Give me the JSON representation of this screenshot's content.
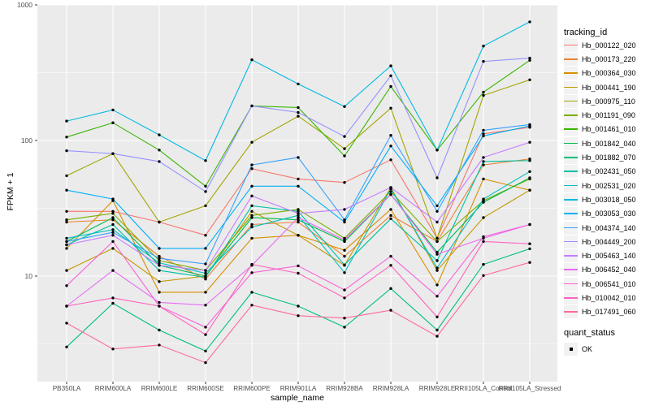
{
  "figure": {
    "background": "#FFFFFF",
    "panel_bg": "#EBEBEB",
    "grid_color": "#FFFFFF",
    "tick_color": "#333333",
    "tick_label_color": "#4D4D4D",
    "axis_title_color": "#000000",
    "point_color": "#000000"
  },
  "chart_data": {
    "type": "line",
    "title": "",
    "xlabel": "sample_name",
    "ylabel": "FPKM + 1",
    "y_scale": "log10",
    "y_tick_labels": [
      "10",
      "100",
      "1000"
    ],
    "y_tick_values": [
      10,
      100,
      1000
    ],
    "y_minor_values": [
      3.162,
      31.62,
      316.2
    ],
    "legend_position": "right",
    "grid": true,
    "categories": [
      "PB350LA",
      "RRIM600LA",
      "RRIM600LE",
      "RRIM600SE",
      "RRIM600PE",
      "RRIM901LA",
      "RRIM928BA",
      "RRIM928LA",
      "RRIM928LE",
      "RRII105LA_Control",
      "RRII105LA_Stressed"
    ],
    "legend_title": "tracking_id",
    "shape_legend_title": "quant_status",
    "shape_legend_items": [
      "OK"
    ],
    "series": [
      {
        "name": "Hb_000122_020",
        "color": "#F8766D",
        "values": [
          30,
          30,
          25,
          20,
          62,
          52,
          49,
          72,
          19,
          112,
          125
        ]
      },
      {
        "name": "Hb_000173_220",
        "color": "#EA8331",
        "values": [
          25,
          26,
          14,
          9.5,
          24,
          25,
          14,
          28,
          18,
          66,
          73
        ]
      },
      {
        "name": "Hb_000364_030",
        "color": "#D89000",
        "values": [
          16,
          36,
          7.6,
          7.6,
          19,
          20,
          15.5,
          31,
          8.6,
          52,
          43
        ]
      },
      {
        "name": "Hb_000441_190",
        "color": "#C09B00",
        "values": [
          11,
          16,
          9.1,
          10,
          30,
          20,
          12,
          45,
          11,
          27,
          43
        ]
      },
      {
        "name": "Hb_000975_110",
        "color": "#A3A500",
        "values": [
          55,
          80,
          25,
          33,
          97,
          151,
          87,
          173,
          19,
          215,
          280
        ]
      },
      {
        "name": "Hb_001191_090",
        "color": "#7CAE00",
        "values": [
          26,
          29,
          13,
          11,
          28,
          31,
          19,
          42,
          18,
          36,
          52
        ]
      },
      {
        "name": "Hb_001461_010",
        "color": "#39B600",
        "values": [
          106,
          135,
          85,
          46,
          180,
          175,
          77,
          250,
          85,
          227,
          390
        ]
      },
      {
        "name": "Hb_001842_040",
        "color": "#00BB4E",
        "values": [
          18,
          27,
          12,
          10,
          27,
          26,
          18,
          40,
          15,
          35,
          53
        ]
      },
      {
        "name": "Hb_001882_070",
        "color": "#00BF7D",
        "values": [
          3,
          6.3,
          4,
          2.8,
          7.6,
          6,
          4.2,
          8.1,
          4,
          12.2,
          15.9
        ]
      },
      {
        "name": "Hb_002431_050",
        "color": "#00C1A3",
        "values": [
          17,
          24,
          11,
          9.8,
          33,
          30,
          12.1,
          26.5,
          13,
          70,
          71
        ]
      },
      {
        "name": "Hb_002531_020",
        "color": "#00BFC4",
        "values": [
          19,
          22,
          12.5,
          10.5,
          23,
          28,
          10.6,
          44,
          11.5,
          37,
          59
        ]
      },
      {
        "name": "Hb_003018_050",
        "color": "#00BAE0",
        "values": [
          139,
          168,
          110,
          71,
          394,
          261,
          178,
          355,
          85,
          497,
          750
        ]
      },
      {
        "name": "Hb_003053_030",
        "color": "#00B0F6",
        "values": [
          43,
          37,
          16,
          16,
          46,
          46,
          25,
          91,
          33,
          108,
          128
        ]
      },
      {
        "name": "Hb_004374_140",
        "color": "#35A2FF",
        "values": [
          18,
          21,
          13.5,
          12.3,
          66,
          75,
          26,
          109,
          30,
          119,
          131
        ]
      },
      {
        "name": "Hb_004449_200",
        "color": "#9590FF",
        "values": [
          84,
          80,
          70,
          42,
          180,
          161,
          107,
          300,
          53,
          383,
          405
        ]
      },
      {
        "name": "Hb_005463_140",
        "color": "#C77CFF",
        "values": [
          17,
          20,
          12,
          11,
          39,
          29,
          31,
          45,
          25,
          75,
          97
        ]
      },
      {
        "name": "Hb_006452_040",
        "color": "#E76BF3",
        "values": [
          6,
          11,
          6.4,
          6.1,
          12,
          27,
          18.5,
          40,
          14.5,
          19,
          24
        ]
      },
      {
        "name": "Hb_006541_010",
        "color": "#FA62DB",
        "values": [
          8.5,
          18,
          6,
          4.2,
          10.6,
          11.9,
          7.9,
          14,
          7.1,
          19.5,
          24
        ]
      },
      {
        "name": "Hb_010042_010",
        "color": "#FF62BC",
        "values": [
          6,
          6.9,
          6,
          3.7,
          12.2,
          10.5,
          6.9,
          12,
          5,
          18,
          17.3
        ]
      },
      {
        "name": "Hb_017491_060",
        "color": "#FF6A98",
        "values": [
          4.5,
          2.9,
          3.1,
          2.3,
          6.1,
          5.1,
          4.9,
          5.6,
          3.6,
          10.1,
          12.6
        ]
      }
    ]
  }
}
